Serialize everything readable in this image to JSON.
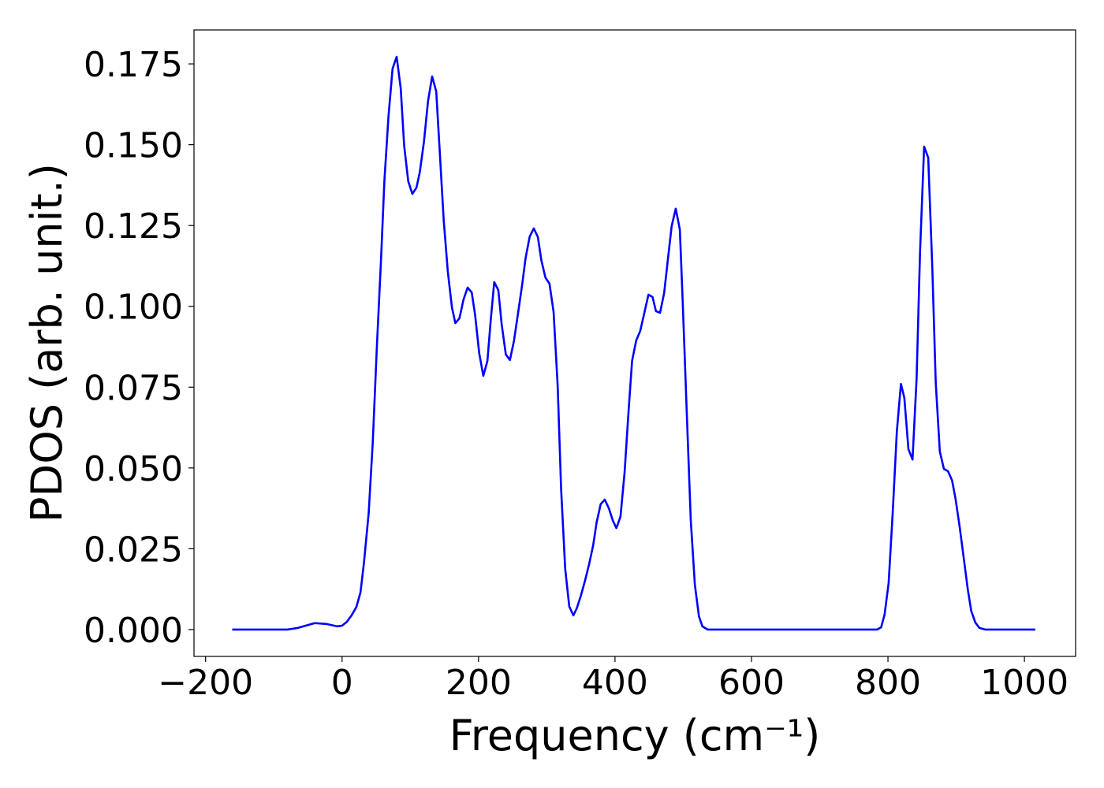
{
  "chart_data": {
    "type": "line",
    "x_label": "Frequency (cm⁻¹)",
    "y_label": "PDOS (arb. unit.)",
    "xlim": [
      -217,
      1075
    ],
    "ylim": [
      -0.0083,
      0.1855
    ],
    "xticks": [
      {
        "value": -200,
        "label": "−200"
      },
      0,
      200,
      400,
      600,
      800,
      1000
    ],
    "yticks": [
      {
        "value": 0,
        "label": "0.000"
      },
      {
        "value": 0.025,
        "label": "0.025"
      },
      {
        "value": 0.05,
        "label": "0.050"
      },
      {
        "value": 0.075,
        "label": "0.075"
      },
      {
        "value": 0.1,
        "label": "0.100"
      },
      {
        "value": 0.125,
        "label": "0.125"
      },
      {
        "value": 0.15,
        "label": "0.150"
      },
      {
        "value": 0.175,
        "label": "0.175"
      }
    ],
    "grid": false,
    "series": [
      {
        "color": "#0000ff",
        "x": [
          -161,
          -80,
          -65,
          -40,
          -22,
          -7,
          0,
          7,
          14,
          21,
          27,
          32,
          39,
          45,
          51,
          57,
          62,
          68,
          74,
          80,
          86,
          91,
          97,
          103,
          109,
          114,
          120,
          126,
          132,
          138,
          143,
          149,
          155,
          161,
          166,
          172,
          178,
          184,
          190,
          195,
          201,
          207,
          213,
          218,
          223,
          229,
          234,
          240,
          246,
          252,
          258,
          264,
          269,
          275,
          281,
          287,
          292,
          298,
          304,
          310,
          316,
          321,
          327,
          333,
          339,
          344,
          350,
          356,
          362,
          368,
          373,
          379,
          385,
          391,
          397,
          402,
          408,
          414,
          420,
          425,
          431,
          437,
          443,
          449,
          455,
          460,
          466,
          472,
          477,
          483,
          489,
          495,
          499,
          505,
          511,
          517,
          523,
          528,
          536,
          784,
          790,
          795,
          801,
          807,
          813,
          819,
          824,
          830,
          836,
          842,
          847,
          853,
          859,
          865,
          870,
          876,
          882,
          888,
          894,
          899,
          905,
          911,
          917,
          922,
          928,
          934,
          943,
          1016
        ],
        "values": [
          0,
          0,
          0.0005,
          0.002,
          0.0017,
          0.001,
          0.0012,
          0.0024,
          0.0044,
          0.007,
          0.0115,
          0.0205,
          0.036,
          0.058,
          0.0875,
          0.114,
          0.1387,
          0.1587,
          0.1735,
          0.1772,
          0.1674,
          0.1497,
          0.1387,
          0.1348,
          0.1367,
          0.1416,
          0.1509,
          0.1635,
          0.1711,
          0.1665,
          0.1484,
          0.1265,
          0.1107,
          0.0997,
          0.0948,
          0.0963,
          0.1021,
          0.1058,
          0.1043,
          0.0973,
          0.0855,
          0.0785,
          0.0831,
          0.096,
          0.1075,
          0.105,
          0.0943,
          0.0851,
          0.0834,
          0.0894,
          0.098,
          0.1068,
          0.115,
          0.1216,
          0.1241,
          0.1214,
          0.1143,
          0.1089,
          0.107,
          0.0982,
          0.0753,
          0.0436,
          0.0188,
          0.0071,
          0.0044,
          0.0066,
          0.0105,
          0.0151,
          0.0202,
          0.0261,
          0.0331,
          0.0388,
          0.0402,
          0.0375,
          0.0336,
          0.0314,
          0.0349,
          0.0485,
          0.068,
          0.0831,
          0.0894,
          0.0924,
          0.098,
          0.1036,
          0.1029,
          0.0985,
          0.098,
          0.1041,
          0.1136,
          0.1248,
          0.1302,
          0.1238,
          0.1026,
          0.068,
          0.0339,
          0.0139,
          0.0041,
          0.001,
          0,
          0,
          0.0007,
          0.0046,
          0.0144,
          0.0363,
          0.0612,
          0.076,
          0.0717,
          0.0558,
          0.0526,
          0.0778,
          0.1167,
          0.1494,
          0.146,
          0.1119,
          0.0765,
          0.0551,
          0.0497,
          0.049,
          0.0461,
          0.0405,
          0.0319,
          0.0222,
          0.0124,
          0.0058,
          0.0022,
          0.0005,
          0,
          0
        ]
      }
    ]
  }
}
